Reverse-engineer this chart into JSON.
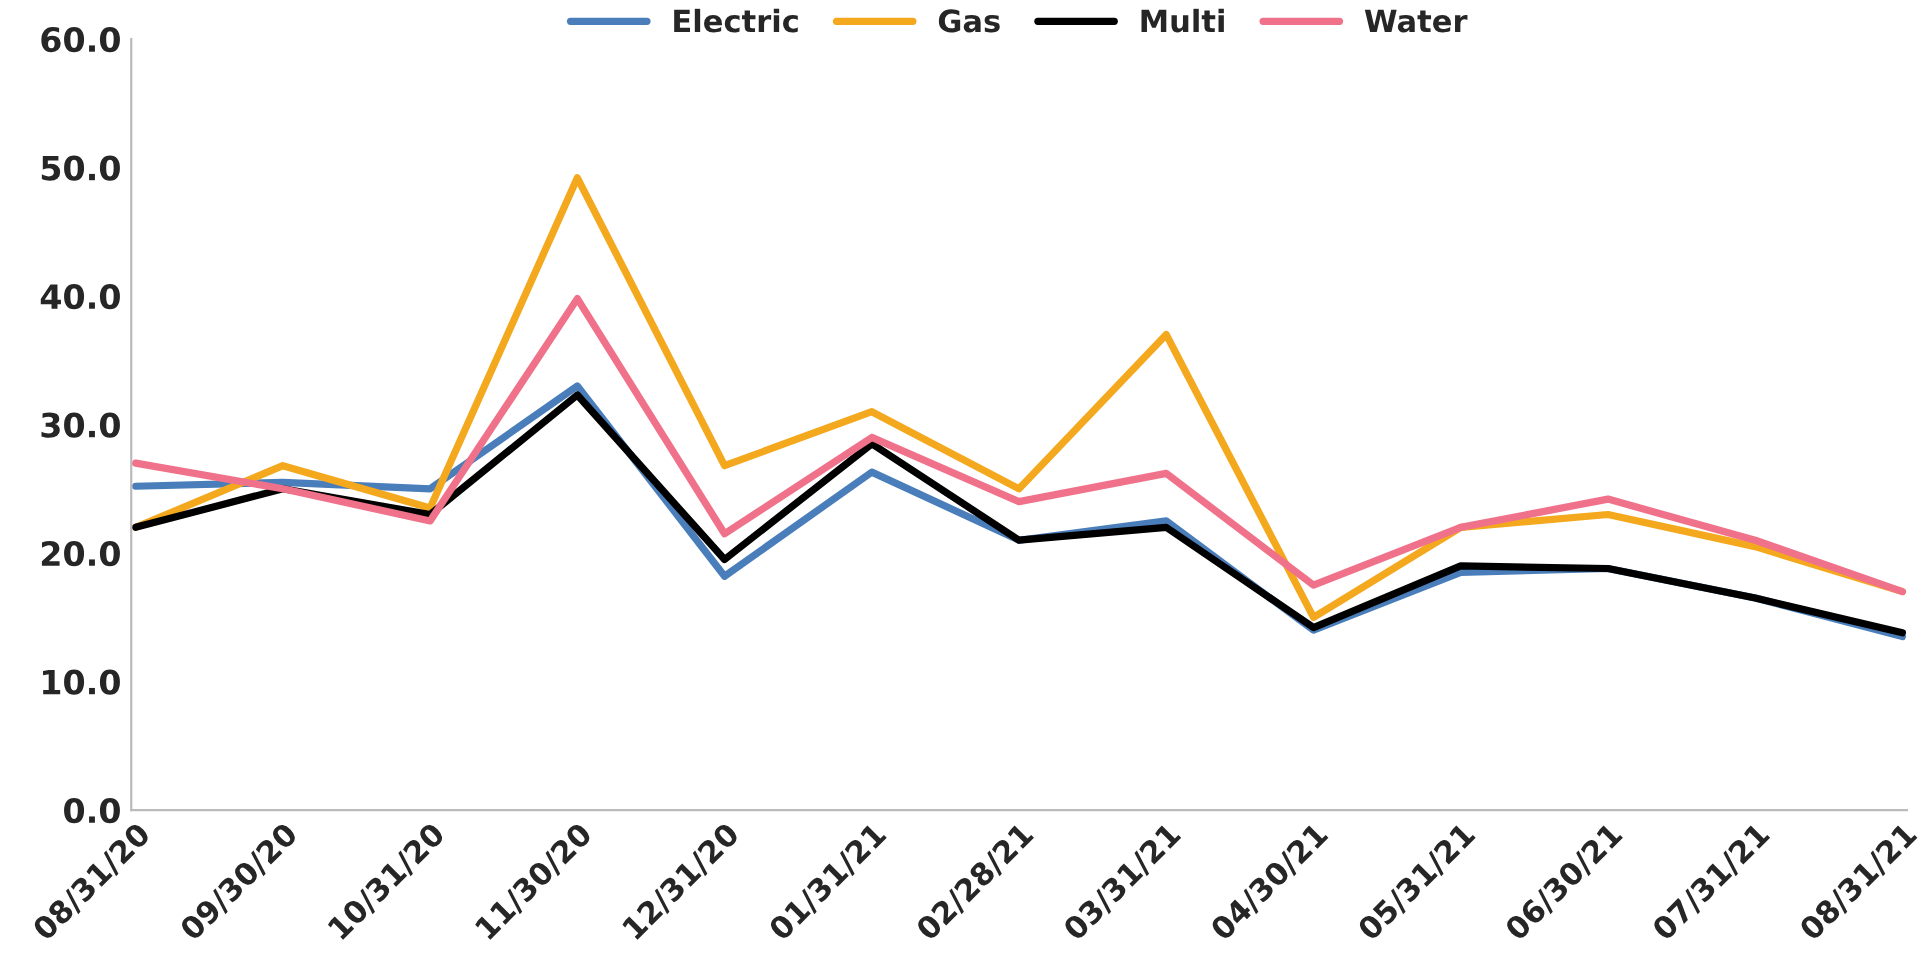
{
  "chart_data": {
    "type": "line",
    "categories": [
      "08/31/20",
      "09/30/20",
      "10/31/20",
      "11/30/20",
      "12/31/20",
      "01/31/21",
      "02/28/21",
      "03/31/21",
      "04/30/21",
      "05/31/21",
      "06/30/21",
      "07/31/21",
      "08/31/21"
    ],
    "series": [
      {
        "name": "Electric",
        "color": "#4a7ebb",
        "values": [
          25.2,
          25.5,
          25.0,
          33.0,
          18.2,
          26.3,
          21.0,
          22.5,
          14.0,
          18.5,
          18.8,
          16.5,
          13.5
        ]
      },
      {
        "name": "Gas",
        "color": "#f4a81d",
        "values": [
          22.0,
          26.8,
          23.5,
          49.2,
          26.8,
          31.0,
          25.0,
          37.0,
          15.0,
          22.0,
          23.0,
          20.5,
          17.0
        ]
      },
      {
        "name": "Multi",
        "color": "#000000",
        "values": [
          22.0,
          25.0,
          23.0,
          32.3,
          19.5,
          28.5,
          21.0,
          22.0,
          14.2,
          19.0,
          18.8,
          16.5,
          13.8
        ]
      },
      {
        "name": "Water",
        "color": "#f0728a",
        "values": [
          27.0,
          25.0,
          22.5,
          39.8,
          21.5,
          29.0,
          24.0,
          26.2,
          17.5,
          22.0,
          24.2,
          21.0,
          17.0
        ]
      }
    ],
    "ylim": [
      0,
      60
    ],
    "yticks": [
      {
        "value": 0,
        "label": "0.0"
      },
      {
        "value": 10,
        "label": "10.0"
      },
      {
        "value": 20,
        "label": "20.0"
      },
      {
        "value": 30,
        "label": "30.0"
      },
      {
        "value": 40,
        "label": "40.0"
      },
      {
        "value": 50,
        "label": "50.0"
      },
      {
        "value": 60,
        "label": "60.0"
      }
    ],
    "grid": false,
    "legend": "top",
    "marker": "none",
    "line_style": "solid"
  }
}
